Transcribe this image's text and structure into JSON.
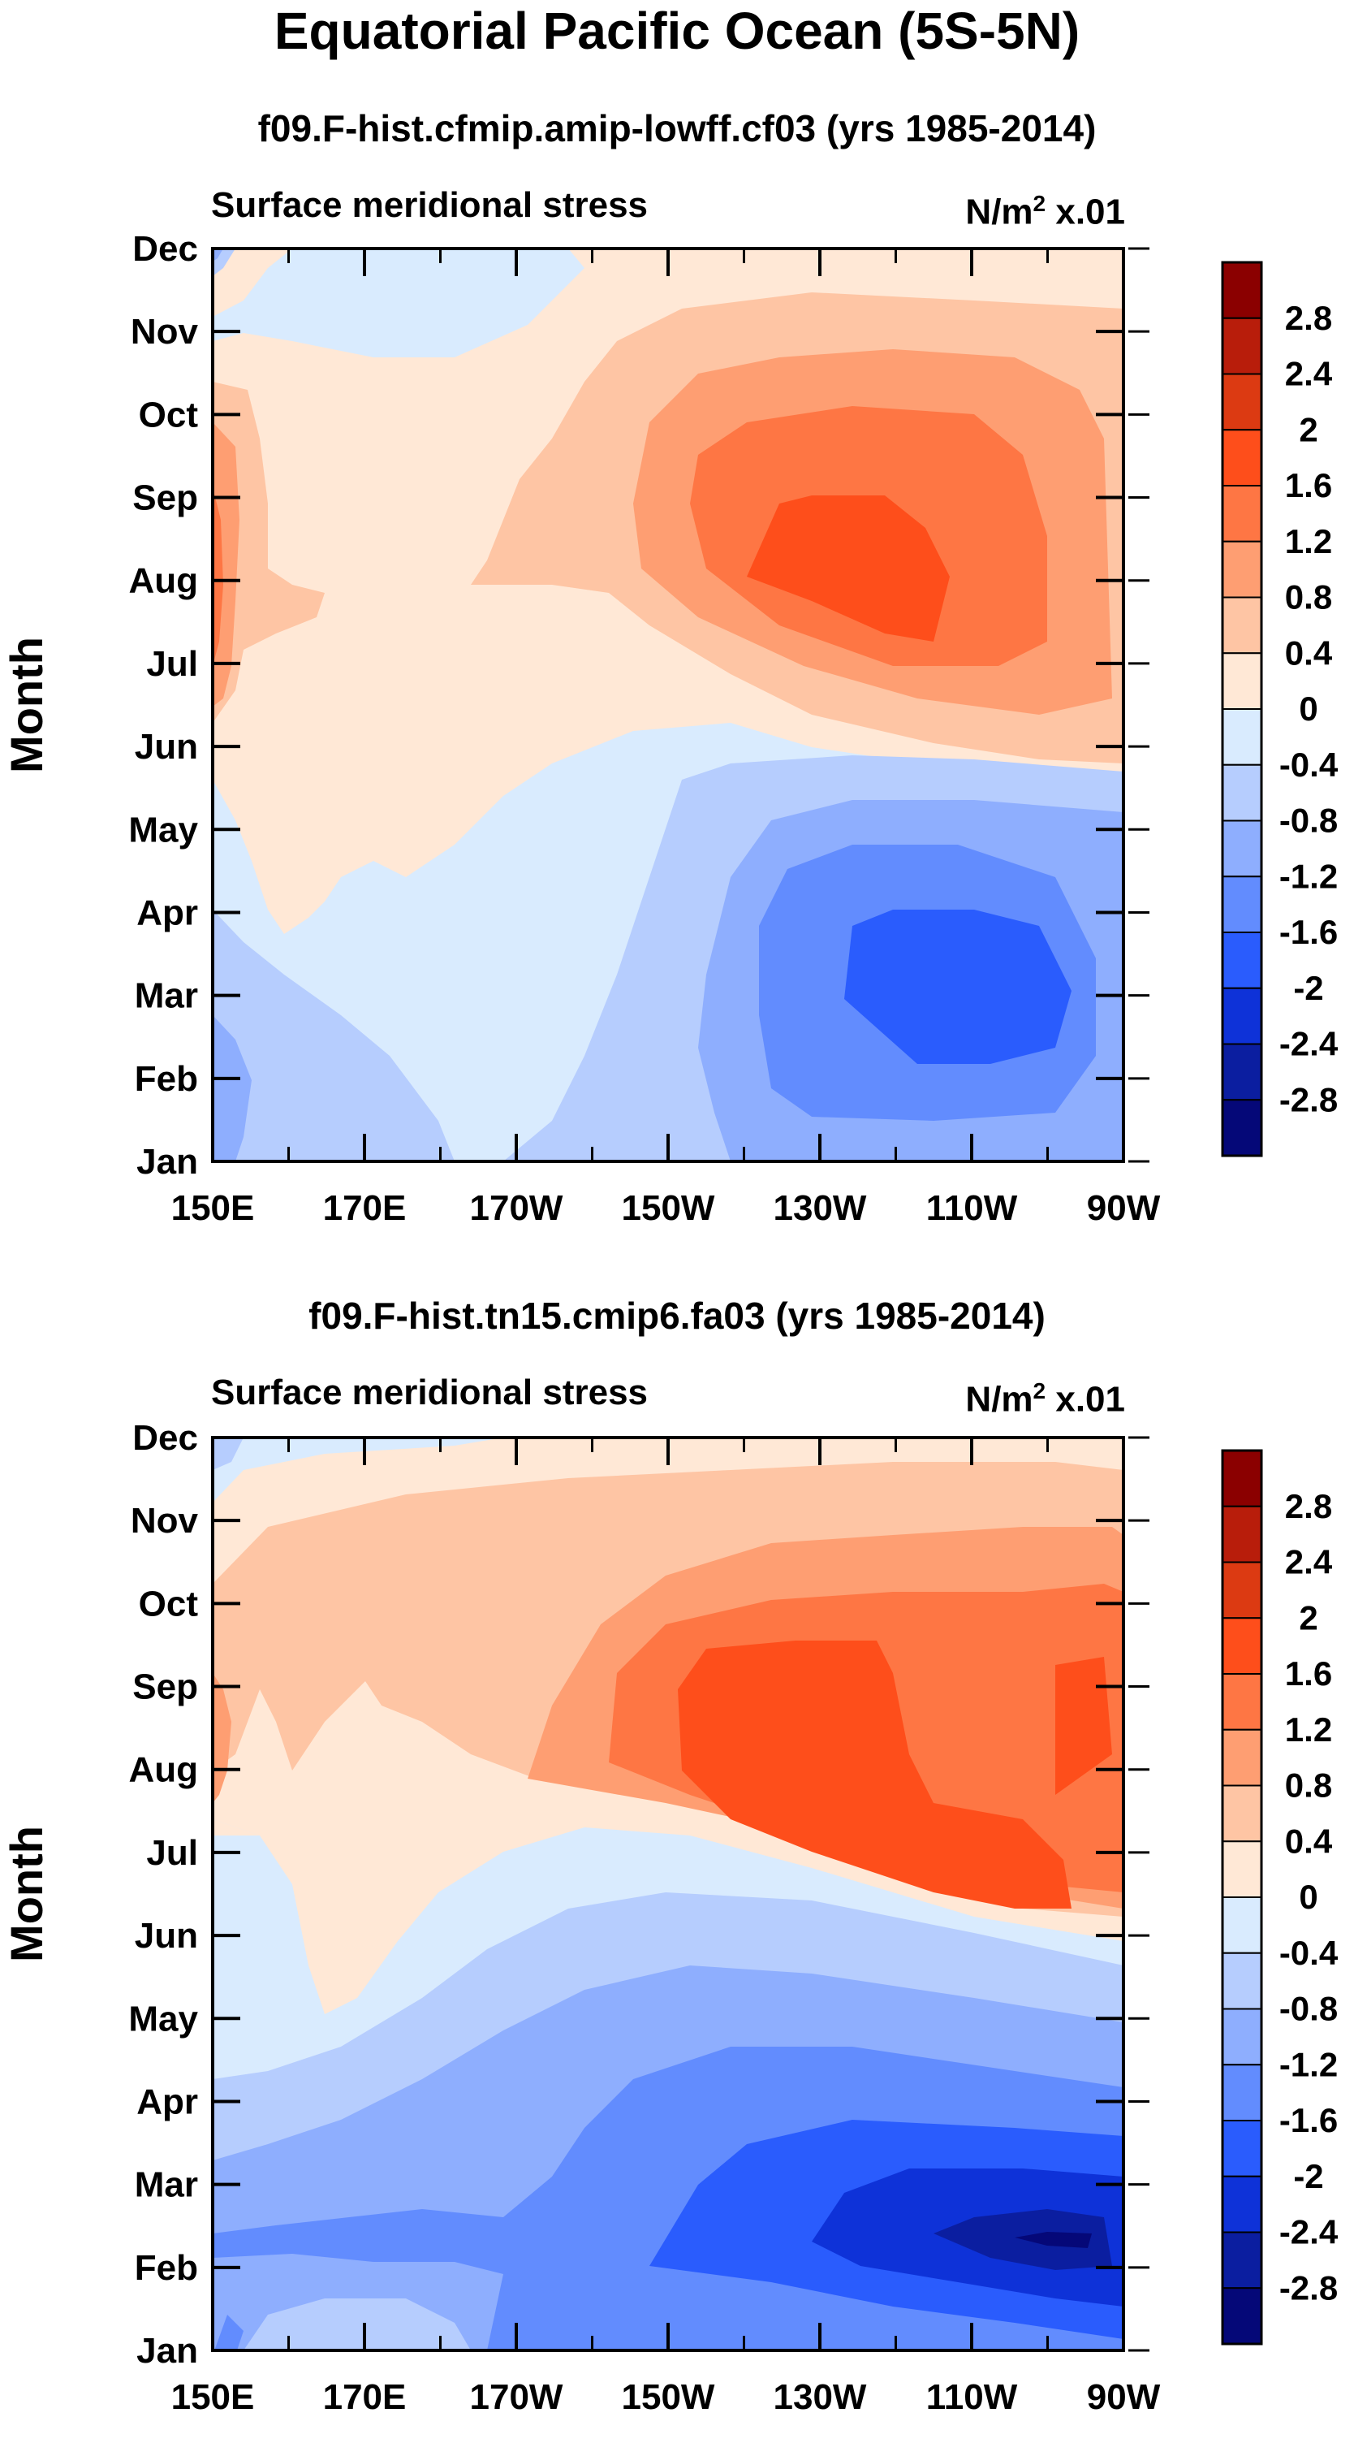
{
  "title": "Equatorial Pacific Ocean (5S-5N)",
  "colorbar": {
    "labels": [
      "2.8",
      "2.4",
      "2",
      "1.6",
      "1.2",
      "0.8",
      "0.4",
      "0",
      "-0.4",
      "-0.8",
      "-1.2",
      "-1.6",
      "-2",
      "-2.4",
      "-2.8"
    ],
    "colors": [
      "#8b0000",
      "#b81d0b",
      "#dc3a12",
      "#fe4e1b",
      "#fe7644",
      "#fe9e72",
      "#fec5a4",
      "#ffe8d6",
      "#d9ebfe",
      "#b6cdfe",
      "#8eaefe",
      "#628cfe",
      "#2a5cfd",
      "#0e32d8",
      "#0b1ea0",
      "#050878"
    ]
  },
  "chart_data": [
    {
      "type": "contour",
      "title": "f09.F-hist.cfmip.amip-lowff.cf03 (yrs 1985-2014)",
      "left_label": "Surface meridional stress",
      "units_base": "N/m",
      "units_exp": "2",
      "units_scale": "x.01",
      "ylabel": "Month",
      "yticks": [
        "Dec",
        "Nov",
        "Oct",
        "Sep",
        "Aug",
        "Jul",
        "Jun",
        "May",
        "Apr",
        "Mar",
        "Feb",
        "Jan"
      ],
      "xticks": [
        "150E",
        "170E",
        "170W",
        "150W",
        "130W",
        "110W",
        "90W"
      ],
      "levels": [
        -2.8,
        -2.4,
        -2,
        -1.6,
        -1.2,
        -0.8,
        -0.4,
        0,
        0.4,
        0.8,
        1.2,
        1.6,
        2,
        2.4,
        2.8
      ]
    },
    {
      "type": "contour",
      "title": "f09.F-hist.tn15.cmip6.fa03 (yrs 1985-2014)",
      "left_label": "Surface meridional stress",
      "units_base": "N/m",
      "units_exp": "2",
      "units_scale": "x.01",
      "ylabel": "Month",
      "yticks": [
        "Dec",
        "Nov",
        "Oct",
        "Sep",
        "Aug",
        "Jul",
        "Jun",
        "May",
        "Apr",
        "Mar",
        "Feb",
        "Jan"
      ],
      "xticks": [
        "150E",
        "170E",
        "170W",
        "150W",
        "130W",
        "110W",
        "90W"
      ],
      "levels": [
        -2.8,
        -2.4,
        -2,
        -1.6,
        -1.2,
        -0.8,
        -0.4,
        0,
        0.4,
        0.8,
        1.2,
        1.6,
        2,
        2.4,
        2.8
      ]
    }
  ]
}
